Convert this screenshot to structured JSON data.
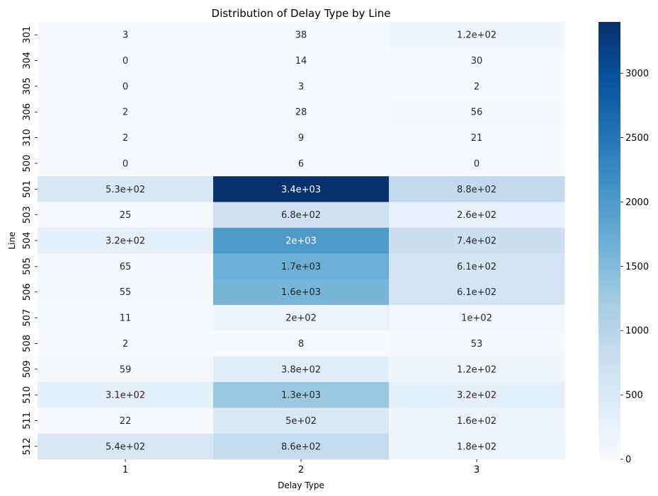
{
  "chart_data": {
    "type": "heatmap",
    "title": "Distribution of Delay Type by Line",
    "xlabel": "Delay Type",
    "ylabel": "Line",
    "x_categories": [
      "1",
      "2",
      "3"
    ],
    "y_categories": [
      "301",
      "304",
      "305",
      "306",
      "310",
      "500",
      "501",
      "503",
      "504",
      "505",
      "506",
      "507",
      "508",
      "509",
      "510",
      "511",
      "512"
    ],
    "values": [
      [
        3,
        38,
        120
      ],
      [
        0,
        14,
        30
      ],
      [
        0,
        3,
        2
      ],
      [
        2,
        28,
        56
      ],
      [
        2,
        9,
        21
      ],
      [
        0,
        6,
        0
      ],
      [
        530,
        3400,
        880
      ],
      [
        25,
        680,
        260
      ],
      [
        320,
        2000,
        740
      ],
      [
        65,
        1700,
        610
      ],
      [
        55,
        1600,
        610
      ],
      [
        11,
        200,
        100
      ],
      [
        2,
        8,
        53
      ],
      [
        59,
        380,
        120
      ],
      [
        310,
        1300,
        320
      ],
      [
        22,
        500,
        160
      ],
      [
        540,
        860,
        180
      ]
    ],
    "annotations": [
      [
        "3",
        "38",
        "1.2e+02"
      ],
      [
        "0",
        "14",
        "30"
      ],
      [
        "0",
        "3",
        "2"
      ],
      [
        "2",
        "28",
        "56"
      ],
      [
        "2",
        "9",
        "21"
      ],
      [
        "0",
        "6",
        "0"
      ],
      [
        "5.3e+02",
        "3.4e+03",
        "8.8e+02"
      ],
      [
        "25",
        "6.8e+02",
        "2.6e+02"
      ],
      [
        "3.2e+02",
        "2e+03",
        "7.4e+02"
      ],
      [
        "65",
        "1.7e+03",
        "6.1e+02"
      ],
      [
        "55",
        "1.6e+03",
        "6.1e+02"
      ],
      [
        "11",
        "2e+02",
        "1e+02"
      ],
      [
        "2",
        "8",
        "53"
      ],
      [
        "59",
        "3.8e+02",
        "1.2e+02"
      ],
      [
        "3.1e+02",
        "1.3e+03",
        "3.2e+02"
      ],
      [
        "22",
        "5e+02",
        "1.6e+02"
      ],
      [
        "5.4e+02",
        "8.6e+02",
        "1.8e+02"
      ]
    ],
    "colorbar": {
      "min": 0,
      "max": 3400,
      "ticks": [
        0,
        500,
        1000,
        1500,
        2000,
        2500,
        3000
      ],
      "colormap": "Blues",
      "colors": [
        "#f7fbff",
        "#deebf7",
        "#c6dbef",
        "#9ecae1",
        "#6baed6",
        "#4292c6",
        "#2171b5",
        "#08519c",
        "#08306b"
      ]
    }
  }
}
